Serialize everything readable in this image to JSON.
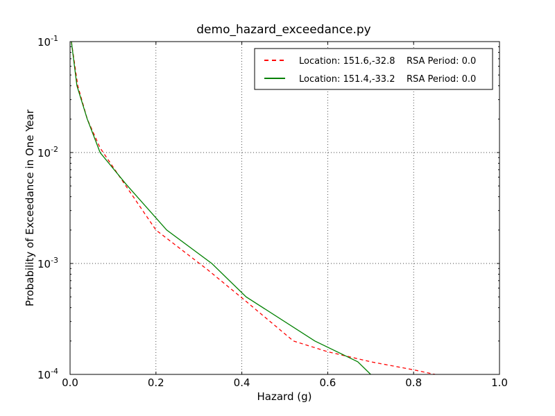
{
  "chart_data": {
    "type": "line",
    "title": "demo_hazard_exceedance.py",
    "xlabel": "Hazard (g)",
    "ylabel": "Probability of Exceedance in One Year",
    "xlim": [
      0.0,
      1.0
    ],
    "ylim": [
      0.0001,
      0.1
    ],
    "yscale": "log",
    "grid": true,
    "legend_position": "top-right",
    "x_ticks": [
      "0.0",
      "0.2",
      "0.4",
      "0.6",
      "0.8",
      "1.0"
    ],
    "y_ticks": [
      {
        "value": 0.1,
        "base": "10",
        "exp": "-1"
      },
      {
        "value": 0.01,
        "base": "10",
        "exp": "-2"
      },
      {
        "value": 0.001,
        "base": "10",
        "exp": "-3"
      },
      {
        "value": 0.0001,
        "base": "10",
        "exp": "-4"
      }
    ],
    "series": [
      {
        "name": "Location: 151.6,-32.8    RSA Period: 0.0",
        "color": "#ff0000",
        "style": "dashed",
        "points": [
          [
            0.003,
            0.1
          ],
          [
            0.018,
            0.04
          ],
          [
            0.04,
            0.02
          ],
          [
            0.07,
            0.011
          ],
          [
            0.13,
            0.005
          ],
          [
            0.2,
            0.002
          ],
          [
            0.32,
            0.00088
          ],
          [
            0.4,
            0.00049
          ],
          [
            0.52,
            0.0002
          ],
          [
            0.6,
            0.00016
          ],
          [
            0.7,
            0.00013
          ],
          [
            0.8,
            0.00011
          ],
          [
            0.85,
            0.0001
          ]
        ]
      },
      {
        "name": "Location: 151.4,-33.2    RSA Period: 0.0",
        "color": "#008000",
        "style": "solid",
        "points": [
          [
            0.003,
            0.1
          ],
          [
            0.016,
            0.04
          ],
          [
            0.04,
            0.02
          ],
          [
            0.07,
            0.01
          ],
          [
            0.13,
            0.0052
          ],
          [
            0.225,
            0.002
          ],
          [
            0.33,
            0.001
          ],
          [
            0.41,
            0.0005
          ],
          [
            0.57,
            0.0002
          ],
          [
            0.67,
            0.00013
          ],
          [
            0.7,
            0.0001
          ]
        ]
      }
    ]
  }
}
